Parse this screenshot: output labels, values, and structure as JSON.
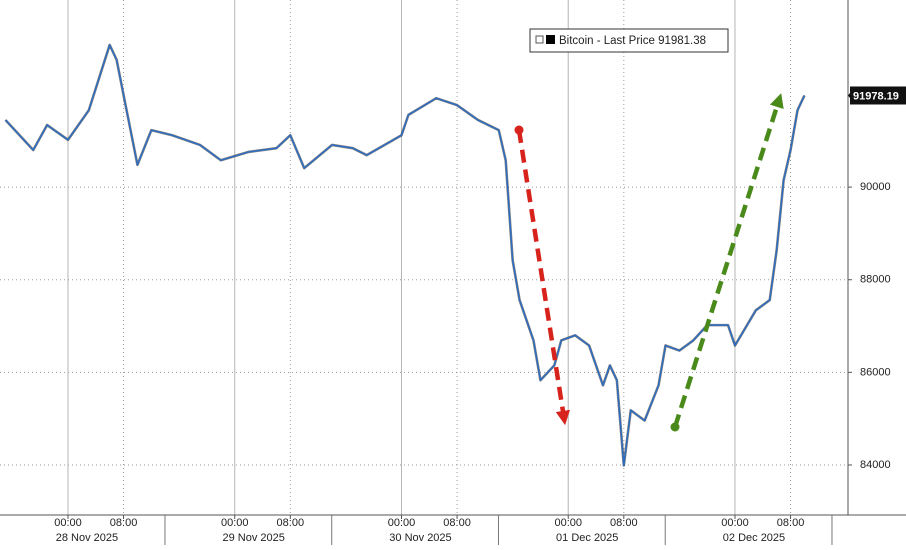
{
  "chart_data": {
    "type": "line",
    "series": [
      {
        "name": "Bitcoin - Last Price",
        "color": "#2a6cc4",
        "x": [
          "2025-11-27 15:00",
          "2025-11-27 19:00",
          "2025-11-27 21:00",
          "2025-11-28 00:00",
          "2025-11-28 03:00",
          "2025-11-28 06:00",
          "2025-11-28 07:00",
          "2025-11-28 08:00",
          "2025-11-28 10:00",
          "2025-11-28 12:00",
          "2025-11-28 15:00",
          "2025-11-28 19:00",
          "2025-11-28 22:00",
          "2025-11-29 02:00",
          "2025-11-29 06:00",
          "2025-11-29 08:00",
          "2025-11-29 10:00",
          "2025-11-29 14:00",
          "2025-11-29 17:00",
          "2025-11-29 19:00",
          "2025-11-30 00:00",
          "2025-11-30 01:00",
          "2025-11-30 05:00",
          "2025-11-30 08:00",
          "2025-11-30 11:00",
          "2025-11-30 14:00",
          "2025-11-30 15:00",
          "2025-11-30 16:00",
          "2025-11-30 17:00",
          "2025-11-30 19:00",
          "2025-11-30 20:00",
          "2025-11-30 22:00",
          "2025-11-30 23:00",
          "2025-12-01 01:00",
          "2025-12-01 03:00",
          "2025-12-01 05:00",
          "2025-12-01 06:00",
          "2025-12-01 07:00",
          "2025-12-01 08:00",
          "2025-12-01 09:00",
          "2025-12-01 11:00",
          "2025-12-01 13:00",
          "2025-12-01 14:00",
          "2025-12-01 16:00",
          "2025-12-01 18:00",
          "2025-12-01 20:00",
          "2025-12-01 23:00",
          "2025-12-02 00:00",
          "2025-12-02 03:00",
          "2025-12-02 05:00",
          "2025-12-02 06:00",
          "2025-12-02 07:00",
          "2025-12-02 08:00",
          "2025-12-02 09:00",
          "2025-12-02 10:00"
        ],
        "values": [
          91450,
          90800,
          91340,
          91020,
          91660,
          93070,
          92750,
          91990,
          90480,
          91230,
          91120,
          90910,
          90580,
          90760,
          90840,
          91120,
          90410,
          90910,
          90840,
          90690,
          91120,
          91560,
          91920,
          91770,
          91450,
          91230,
          90580,
          88420,
          87560,
          86690,
          85830,
          86150,
          86690,
          86800,
          86580,
          85720,
          86150,
          85830,
          83990,
          85180,
          84960,
          85720,
          86580,
          86470,
          86690,
          87020,
          87020,
          86580,
          87340,
          87560,
          88640,
          90150,
          90800,
          91660,
          91978.19
        ]
      }
    ],
    "legend_value": 91981.38,
    "xlim": [
      "2025-11-27 14:13",
      "2025-12-02 16:16"
    ],
    "xticks": [
      {
        "value": "2025-11-28 00:00",
        "label": "00:00"
      },
      {
        "value": "2025-11-28 08:00",
        "label": "08:00"
      },
      {
        "value": "2025-11-29 00:00",
        "label": "00:00"
      },
      {
        "value": "2025-11-29 08:00",
        "label": "08:00"
      },
      {
        "value": "2025-11-30 00:00",
        "label": "00:00"
      },
      {
        "value": "2025-11-30 08:00",
        "label": "08:00"
      },
      {
        "value": "2025-12-01 00:00",
        "label": "00:00"
      },
      {
        "value": "2025-12-01 08:00",
        "label": "08:00"
      },
      {
        "value": "2025-12-02 00:00",
        "label": "00:00"
      },
      {
        "value": "2025-12-02 08:00",
        "label": "08:00"
      }
    ],
    "xdates": [
      {
        "value": "2025-11-28 00:00",
        "label": "28 Nov 2025"
      },
      {
        "value": "2025-11-29 00:00",
        "label": "29 Nov 2025"
      },
      {
        "value": "2025-11-30 00:00",
        "label": "30 Nov 2025"
      },
      {
        "value": "2025-12-01 00:00",
        "label": "01 Dec 2025"
      },
      {
        "value": "2025-12-02 00:00",
        "label": "02 Dec 2025"
      }
    ],
    "ylim": [
      82920,
      94040
    ],
    "yticks": [
      84000,
      86000,
      88000,
      90000
    ],
    "grid": true,
    "legend": "top-right"
  }
}
